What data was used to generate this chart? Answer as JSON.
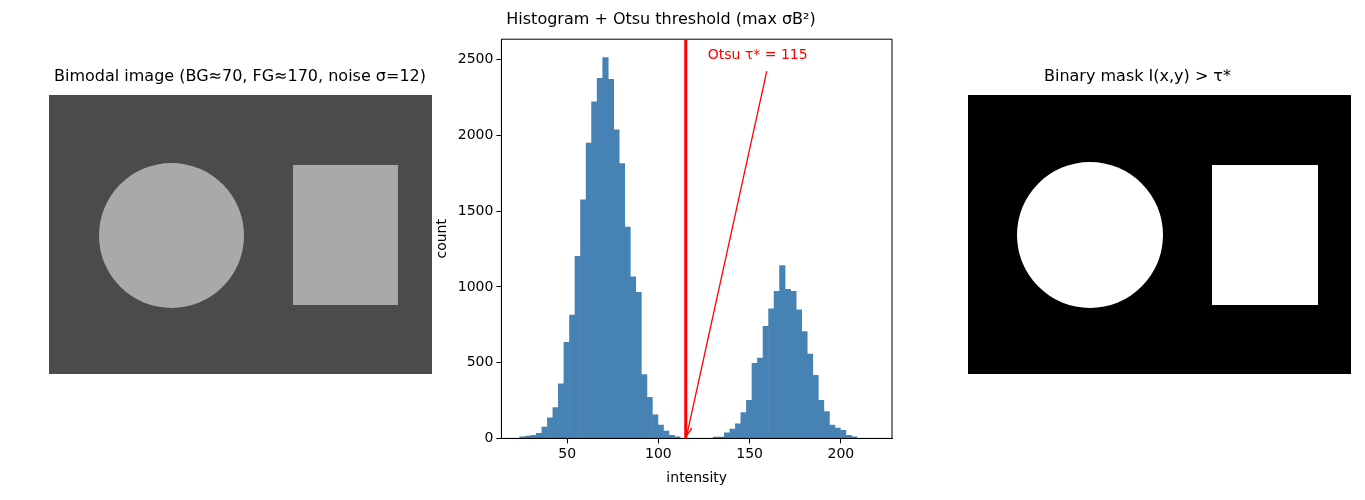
{
  "chart_data": [
    {
      "type": "other",
      "title": "Bimodal image (BG≈70, FG≈170, noise σ=12)"
    },
    {
      "type": "histogram",
      "title": "Histogram + Otsu threshold (max σB²)",
      "xlabel": "intensity",
      "ylabel": "count",
      "color": "#4682b4",
      "bins": [
        24.0,
        27.0,
        30.1,
        33.1,
        36.1,
        39.2,
        42.2,
        45.2,
        48.2,
        51.3,
        54.3,
        57.3,
        60.4,
        63.4,
        66.4,
        69.5,
        72.5,
        75.5,
        78.5,
        81.6,
        84.6,
        87.6,
        90.7,
        93.7,
        96.7,
        99.8,
        102.8,
        105.8,
        108.8,
        111.9,
        114.9,
        117.9,
        121.0,
        124.0,
        127.0,
        130.1,
        133.1,
        136.1,
        139.1,
        142.2,
        145.2,
        148.2,
        151.3,
        154.3,
        157.3,
        160.4,
        163.4,
        166.4,
        169.4,
        172.5,
        175.5,
        178.5,
        181.6,
        184.6,
        187.6,
        190.7,
        193.7,
        196.7,
        199.7,
        202.8,
        205.8,
        208.8,
        211.9,
        214.9,
        217.9
      ],
      "values": [
        10,
        15,
        20,
        34,
        75,
        136,
        204,
        360,
        634,
        815,
        1202,
        1576,
        1950,
        2222,
        2378,
        2514,
        2371,
        2038,
        1814,
        1395,
        1067,
        965,
        421,
        272,
        156,
        88,
        48,
        20,
        10,
        null,
        0,
        0,
        0,
        0,
        null,
        8,
        8,
        36,
        61,
        97,
        170,
        251,
        496,
        530,
        740,
        856,
        971,
        1141,
        985,
        971,
        849,
        706,
        557,
        417,
        251,
        177,
        88,
        68,
        54,
        20,
        10,
        null,
        null,
        null
      ],
      "xlim": [
        14,
        228
      ],
      "xticks": [
        50,
        100,
        150,
        200
      ],
      "ylim": [
        0,
        2636
      ],
      "yticks": [
        0,
        500,
        1000,
        1500,
        2000,
        2500
      ],
      "grid": false,
      "ref_lines": [
        {
          "axis": "x",
          "value": 115,
          "color": "#ff0000"
        }
      ],
      "annotations": [
        {
          "text": "Otsu τ* = 115",
          "x": 115,
          "y": 0
        }
      ]
    },
    {
      "type": "other",
      "title": "Binary mask I(x,y) > τ*"
    }
  ]
}
